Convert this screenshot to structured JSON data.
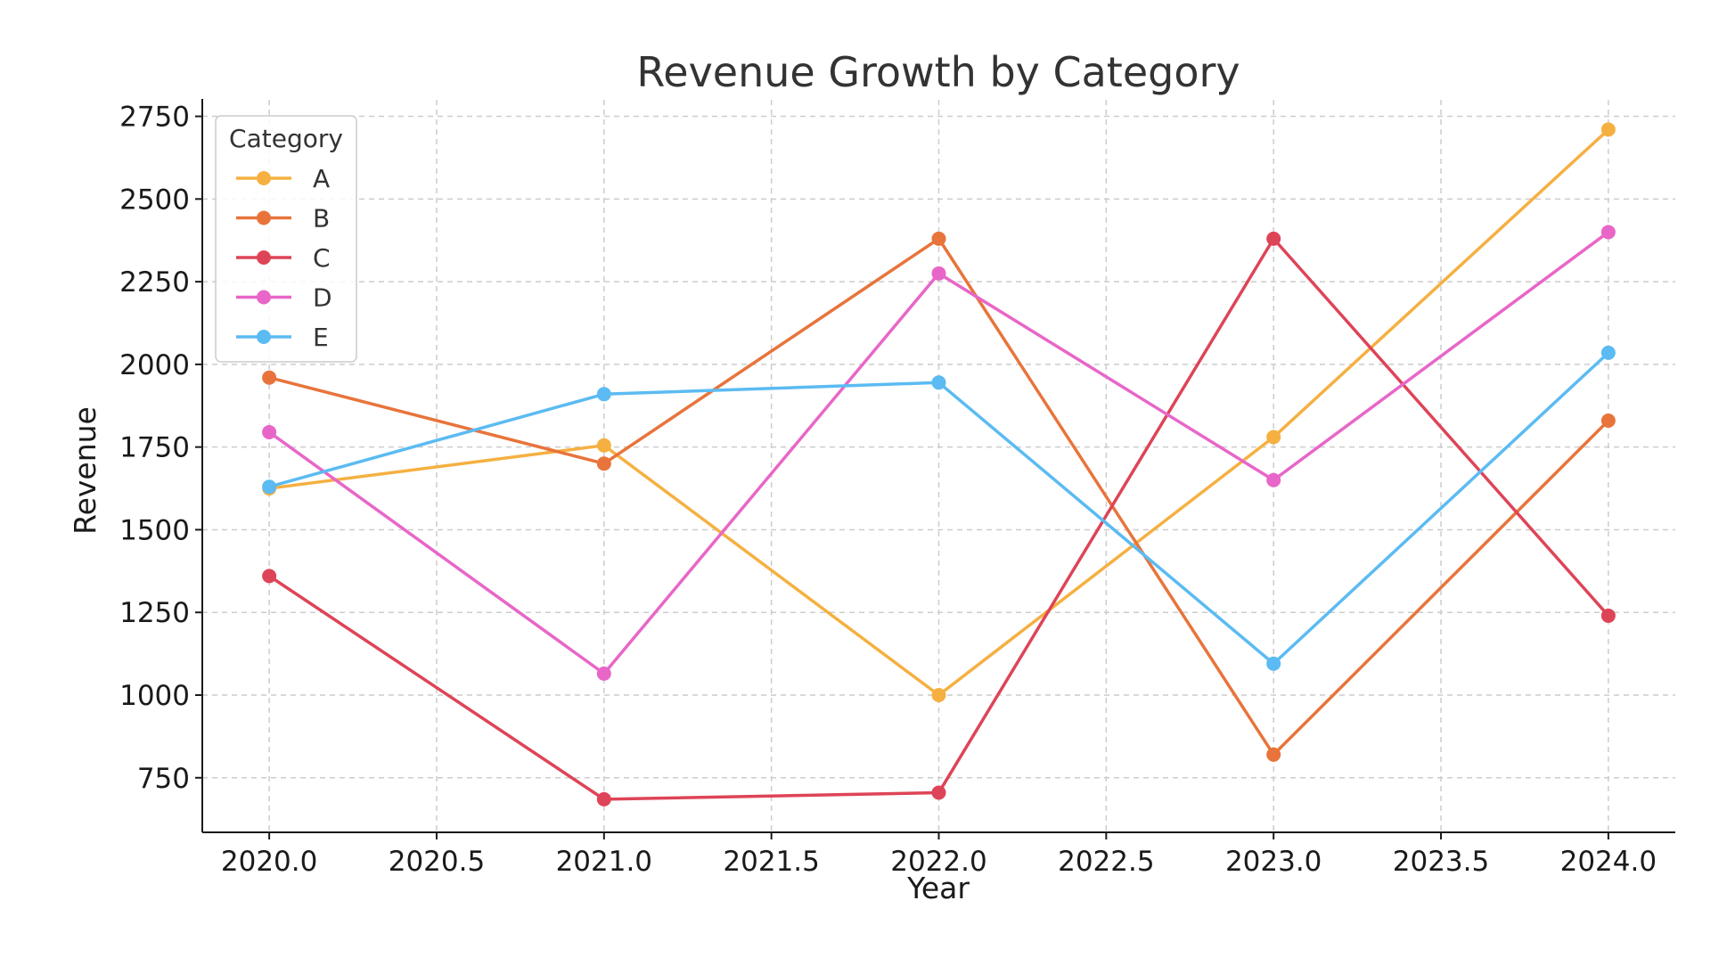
{
  "chart_data": {
    "type": "line",
    "title": "Revenue Growth by Category",
    "xlabel": "Year",
    "ylabel": "Revenue",
    "x": [
      2020,
      2021,
      2022,
      2023,
      2024
    ],
    "xlim": [
      2019.8,
      2024.2
    ],
    "ylim": [
      585,
      2800
    ],
    "xticks": [
      2020.0,
      2020.5,
      2021.0,
      2021.5,
      2022.0,
      2022.5,
      2023.0,
      2023.5,
      2024.0
    ],
    "xtick_labels": [
      "2020.0",
      "2020.5",
      "2021.0",
      "2021.5",
      "2022.0",
      "2022.5",
      "2023.0",
      "2023.5",
      "2024.0"
    ],
    "yticks": [
      750,
      1000,
      1250,
      1500,
      1750,
      2000,
      2250,
      2500,
      2750
    ],
    "ytick_labels": [
      "750",
      "1000",
      "1250",
      "1500",
      "1750",
      "2000",
      "2250",
      "2500",
      "2750"
    ],
    "grid": true,
    "legend_title": "Category",
    "legend_position": "top-left",
    "series": [
      {
        "name": "A",
        "color": "#F5B041",
        "values": [
          1625,
          1755,
          1000,
          1780,
          2710
        ]
      },
      {
        "name": "B",
        "color": "#E8743B",
        "values": [
          1960,
          1700,
          2380,
          820,
          1830
        ]
      },
      {
        "name": "C",
        "color": "#DE4457",
        "values": [
          1360,
          685,
          705,
          2380,
          1240
        ]
      },
      {
        "name": "D",
        "color": "#E866C8",
        "values": [
          1795,
          1065,
          2275,
          1650,
          2400
        ]
      },
      {
        "name": "E",
        "color": "#5BBBF2",
        "values": [
          1630,
          1910,
          1945,
          1095,
          2035
        ]
      }
    ]
  }
}
